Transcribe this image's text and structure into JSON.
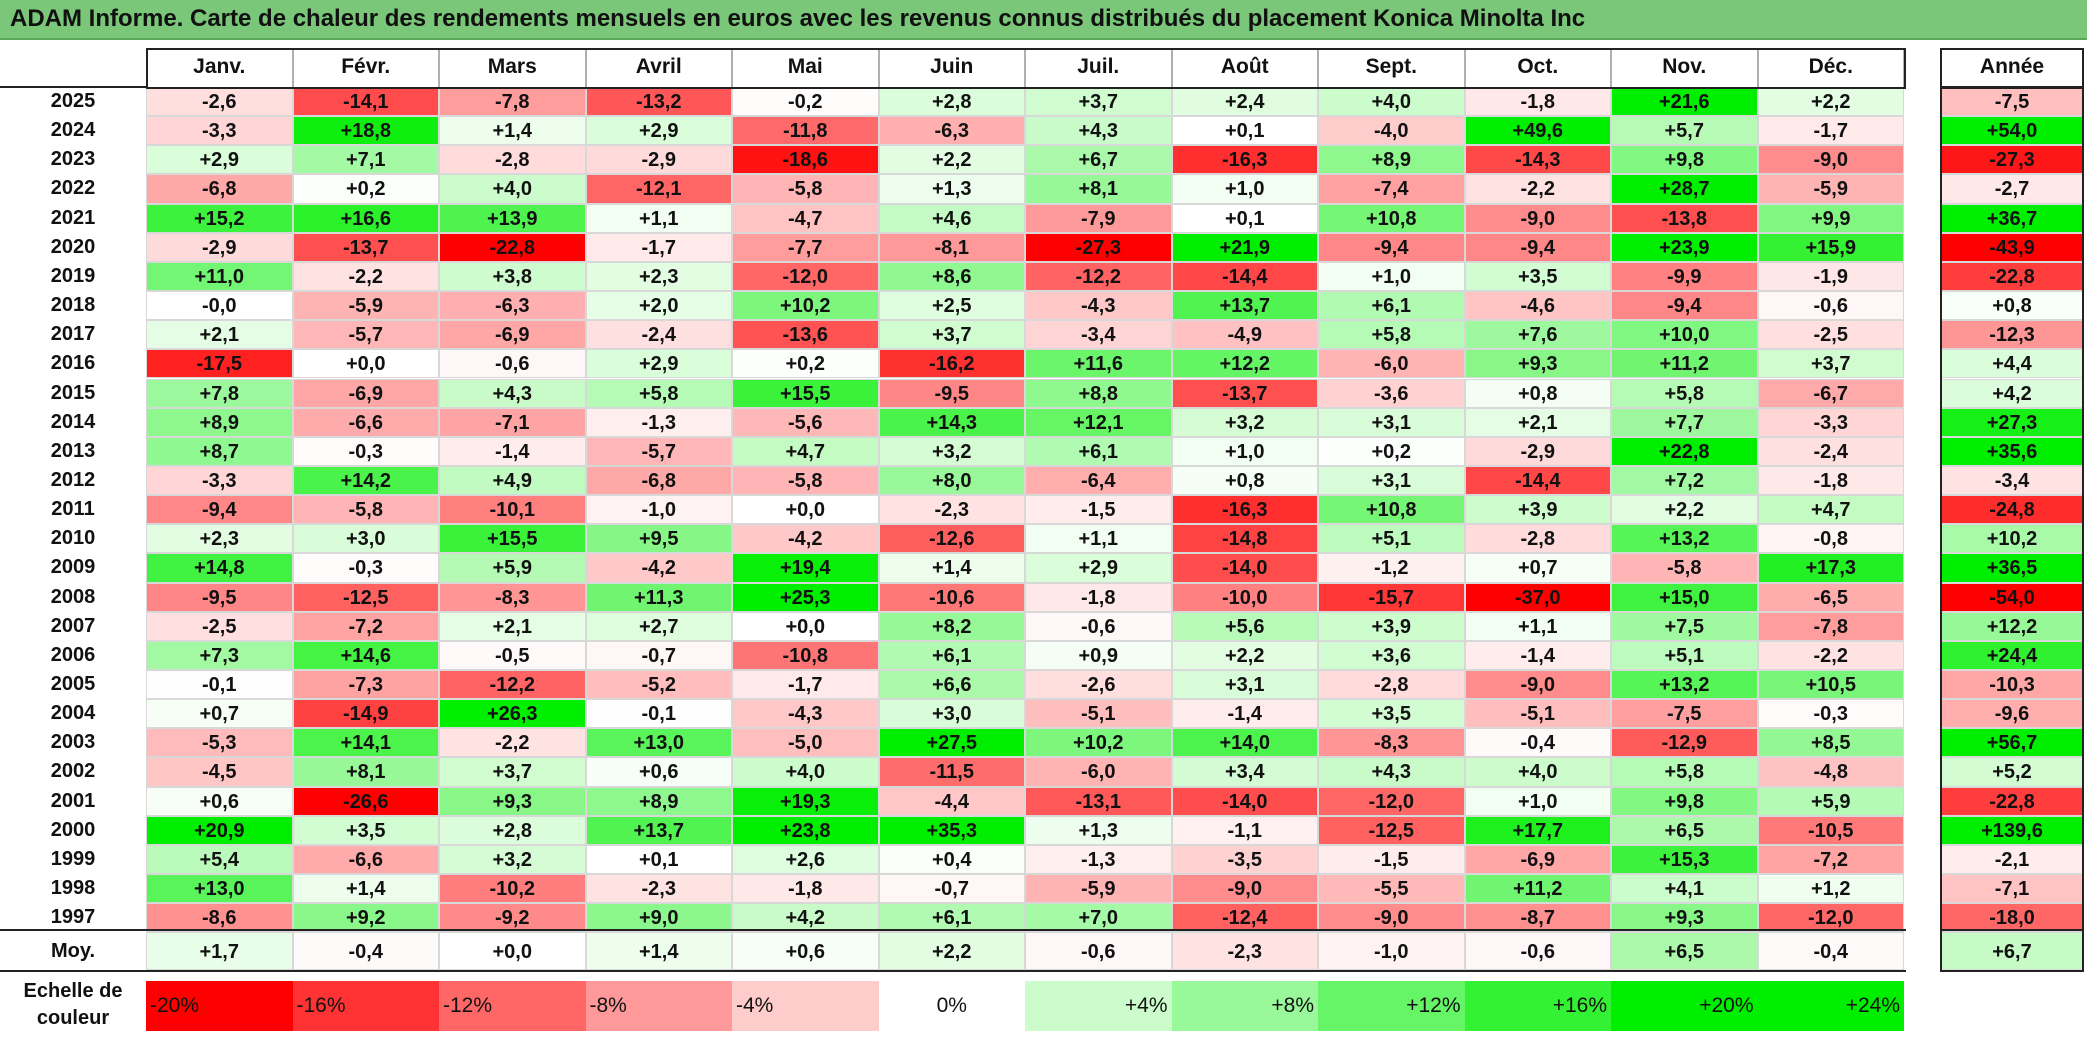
{
  "title": "ADAM Informe. Carte de chaleur des rendements mensuels en euros avec les revenus connus distribués du placement Konica Minolta Inc",
  "colors": {
    "negative": "#ff0000",
    "zero": "#ffffff",
    "positive": "#00ee00",
    "title_bg": "#7ac77a"
  },
  "chart_data": {
    "type": "heatmap",
    "columns": [
      "Janv.",
      "Févr.",
      "Mars",
      "Avril",
      "Mai",
      "Juin",
      "Juil.",
      "Août",
      "Sept.",
      "Oct.",
      "Nov.",
      "Déc."
    ],
    "year_column": "Année",
    "rows": [
      {
        "year": "2025",
        "months": [
          "-2,6",
          "-14,1",
          "-7,8",
          "-13,2",
          "-0,2",
          "+2,8",
          "+3,7",
          "+2,4",
          "+4,0",
          "-1,8",
          "+21,6",
          "+2,2"
        ],
        "annual": "-7,5"
      },
      {
        "year": "2024",
        "months": [
          "-3,3",
          "+18,8",
          "+1,4",
          "+2,9",
          "-11,8",
          "-6,3",
          "+4,3",
          "+0,1",
          "-4,0",
          "+49,6",
          "+5,7",
          "-1,7"
        ],
        "annual": "+54,0"
      },
      {
        "year": "2023",
        "months": [
          "+2,9",
          "+7,1",
          "-2,8",
          "-2,9",
          "-18,6",
          "+2,2",
          "+6,7",
          "-16,3",
          "+8,9",
          "-14,3",
          "+9,8",
          "-9,0"
        ],
        "annual": "-27,3"
      },
      {
        "year": "2022",
        "months": [
          "-6,8",
          "+0,2",
          "+4,0",
          "-12,1",
          "-5,8",
          "+1,3",
          "+8,1",
          "+1,0",
          "-7,4",
          "-2,2",
          "+28,7",
          "-5,9"
        ],
        "annual": "-2,7"
      },
      {
        "year": "2021",
        "months": [
          "+15,2",
          "+16,6",
          "+13,9",
          "+1,1",
          "-4,7",
          "+4,6",
          "-7,9",
          "+0,1",
          "+10,8",
          "-9,0",
          "-13,8",
          "+9,9"
        ],
        "annual": "+36,7"
      },
      {
        "year": "2020",
        "months": [
          "-2,9",
          "-13,7",
          "-22,8",
          "-1,7",
          "-7,7",
          "-8,1",
          "-27,3",
          "+21,9",
          "-9,4",
          "-9,4",
          "+23,9",
          "+15,9"
        ],
        "annual": "-43,9"
      },
      {
        "year": "2019",
        "months": [
          "+11,0",
          "-2,2",
          "+3,8",
          "+2,3",
          "-12,0",
          "+8,6",
          "-12,2",
          "-14,4",
          "+1,0",
          "+3,5",
          "-9,9",
          "-1,9"
        ],
        "annual": "-22,8"
      },
      {
        "year": "2018",
        "months": [
          "-0,0",
          "-5,9",
          "-6,3",
          "+2,0",
          "+10,2",
          "+2,5",
          "-4,3",
          "+13,7",
          "+6,1",
          "-4,6",
          "-9,4",
          "-0,6"
        ],
        "annual": "+0,8"
      },
      {
        "year": "2017",
        "months": [
          "+2,1",
          "-5,7",
          "-6,9",
          "-2,4",
          "-13,6",
          "+3,7",
          "-3,4",
          "-4,9",
          "+5,8",
          "+7,6",
          "+10,0",
          "-2,5"
        ],
        "annual": "-12,3"
      },
      {
        "year": "2016",
        "months": [
          "-17,5",
          "+0,0",
          "-0,6",
          "+2,9",
          "+0,2",
          "-16,2",
          "+11,6",
          "+12,2",
          "-6,0",
          "+9,3",
          "+11,2",
          "+3,7"
        ],
        "annual": "+4,4"
      },
      {
        "year": "2015",
        "months": [
          "+7,8",
          "-6,9",
          "+4,3",
          "+5,8",
          "+15,5",
          "-9,5",
          "+8,8",
          "-13,7",
          "-3,6",
          "+0,8",
          "+5,8",
          "-6,7"
        ],
        "annual": "+4,2"
      },
      {
        "year": "2014",
        "months": [
          "+8,9",
          "-6,6",
          "-7,1",
          "-1,3",
          "-5,6",
          "+14,3",
          "+12,1",
          "+3,2",
          "+3,1",
          "+2,1",
          "+7,7",
          "-3,3"
        ],
        "annual": "+27,3"
      },
      {
        "year": "2013",
        "months": [
          "+8,7",
          "-0,3",
          "-1,4",
          "-5,7",
          "+4,7",
          "+3,2",
          "+6,1",
          "+1,0",
          "+0,2",
          "-2,9",
          "+22,8",
          "-2,4"
        ],
        "annual": "+35,6"
      },
      {
        "year": "2012",
        "months": [
          "-3,3",
          "+14,2",
          "+4,9",
          "-6,8",
          "-5,8",
          "+8,0",
          "-6,4",
          "+0,8",
          "+3,1",
          "-14,4",
          "+7,2",
          "-1,8"
        ],
        "annual": "-3,4"
      },
      {
        "year": "2011",
        "months": [
          "-9,4",
          "-5,8",
          "-10,1",
          "-1,0",
          "+0,0",
          "-2,3",
          "-1,5",
          "-16,3",
          "+10,8",
          "+3,9",
          "+2,2",
          "+4,7"
        ],
        "annual": "-24,8"
      },
      {
        "year": "2010",
        "months": [
          "+2,3",
          "+3,0",
          "+15,5",
          "+9,5",
          "-4,2",
          "-12,6",
          "+1,1",
          "-14,8",
          "+5,1",
          "-2,8",
          "+13,2",
          "-0,8"
        ],
        "annual": "+10,2"
      },
      {
        "year": "2009",
        "months": [
          "+14,8",
          "-0,3",
          "+5,9",
          "-4,2",
          "+19,4",
          "+1,4",
          "+2,9",
          "-14,0",
          "-1,2",
          "+0,7",
          "-5,8",
          "+17,3"
        ],
        "annual": "+36,5"
      },
      {
        "year": "2008",
        "months": [
          "-9,5",
          "-12,5",
          "-8,3",
          "+11,3",
          "+25,3",
          "-10,6",
          "-1,8",
          "-10,0",
          "-15,7",
          "-37,0",
          "+15,0",
          "-6,5"
        ],
        "annual": "-54,0"
      },
      {
        "year": "2007",
        "months": [
          "-2,5",
          "-7,2",
          "+2,1",
          "+2,7",
          "+0,0",
          "+8,2",
          "-0,6",
          "+5,6",
          "+3,9",
          "+1,1",
          "+7,5",
          "-7,8"
        ],
        "annual": "+12,2"
      },
      {
        "year": "2006",
        "months": [
          "+7,3",
          "+14,6",
          "-0,5",
          "-0,7",
          "-10,8",
          "+6,1",
          "+0,9",
          "+2,2",
          "+3,6",
          "-1,4",
          "+5,1",
          "-2,2"
        ],
        "annual": "+24,4"
      },
      {
        "year": "2005",
        "months": [
          "-0,1",
          "-7,3",
          "-12,2",
          "-5,2",
          "-1,7",
          "+6,6",
          "-2,6",
          "+3,1",
          "-2,8",
          "-9,0",
          "+13,2",
          "+10,5"
        ],
        "annual": "-10,3"
      },
      {
        "year": "2004",
        "months": [
          "+0,7",
          "-14,9",
          "+26,3",
          "-0,1",
          "-4,3",
          "+3,0",
          "-5,1",
          "-1,4",
          "+3,5",
          "-5,1",
          "-7,5",
          "-0,3"
        ],
        "annual": "-9,6"
      },
      {
        "year": "2003",
        "months": [
          "-5,3",
          "+14,1",
          "-2,2",
          "+13,0",
          "-5,0",
          "+27,5",
          "+10,2",
          "+14,0",
          "-8,3",
          "-0,4",
          "-12,9",
          "+8,5"
        ],
        "annual": "+56,7"
      },
      {
        "year": "2002",
        "months": [
          "-4,5",
          "+8,1",
          "+3,7",
          "+0,6",
          "+4,0",
          "-11,5",
          "-6,0",
          "+3,4",
          "+4,3",
          "+4,0",
          "+5,8",
          "-4,8"
        ],
        "annual": "+5,2"
      },
      {
        "year": "2001",
        "months": [
          "+0,6",
          "-26,6",
          "+9,3",
          "+8,9",
          "+19,3",
          "-4,4",
          "-13,1",
          "-14,0",
          "-12,0",
          "+1,0",
          "+9,8",
          "+5,9"
        ],
        "annual": "-22,8"
      },
      {
        "year": "2000",
        "months": [
          "+20,9",
          "+3,5",
          "+2,8",
          "+13,7",
          "+23,8",
          "+35,3",
          "+1,3",
          "-1,1",
          "-12,5",
          "+17,7",
          "+6,5",
          "-10,5"
        ],
        "annual": "+139,6"
      },
      {
        "year": "1999",
        "months": [
          "+5,4",
          "-6,6",
          "+3,2",
          "+0,1",
          "+2,6",
          "+0,4",
          "-1,3",
          "-3,5",
          "-1,5",
          "-6,9",
          "+15,3",
          "-7,2"
        ],
        "annual": "-2,1"
      },
      {
        "year": "1998",
        "months": [
          "+13,0",
          "+1,4",
          "-10,2",
          "-2,3",
          "-1,8",
          "-0,7",
          "-5,9",
          "-9,0",
          "-5,5",
          "+11,2",
          "+4,1",
          "+1,2"
        ],
        "annual": "-7,1"
      },
      {
        "year": "1997",
        "months": [
          "-8,6",
          "+9,2",
          "-9,2",
          "+9,0",
          "+4,2",
          "+6,1",
          "+7,0",
          "-12,4",
          "-9,0",
          "-8,7",
          "+9,3",
          "-12,0"
        ],
        "annual": "-18,0"
      }
    ],
    "average": {
      "label": "Moy.",
      "months": [
        "+1,7",
        "-0,4",
        "+0,0",
        "+1,4",
        "+0,6",
        "+2,2",
        "-0,6",
        "-2,3",
        "-1,0",
        "-0,6",
        "+6,5",
        "-0,4"
      ],
      "annual": "+6,7"
    },
    "scale": {
      "label": "Echelle de couleur",
      "steps": [
        {
          "label": "-20%",
          "value": -20
        },
        {
          "label": "-16%",
          "value": -16
        },
        {
          "label": "-12%",
          "value": -12
        },
        {
          "label": "-8%",
          "value": -8
        },
        {
          "label": "-4%",
          "value": -4
        },
        {
          "label": "0%",
          "value": 0
        },
        {
          "label": "+4%",
          "value": 4
        },
        {
          "label": "+8%",
          "value": 8
        },
        {
          "label": "+12%",
          "value": 12
        },
        {
          "label": "+16%",
          "value": 16
        },
        {
          "label": "+20%",
          "value": 20
        },
        {
          "label": "+24%",
          "value": 24
        }
      ]
    }
  }
}
